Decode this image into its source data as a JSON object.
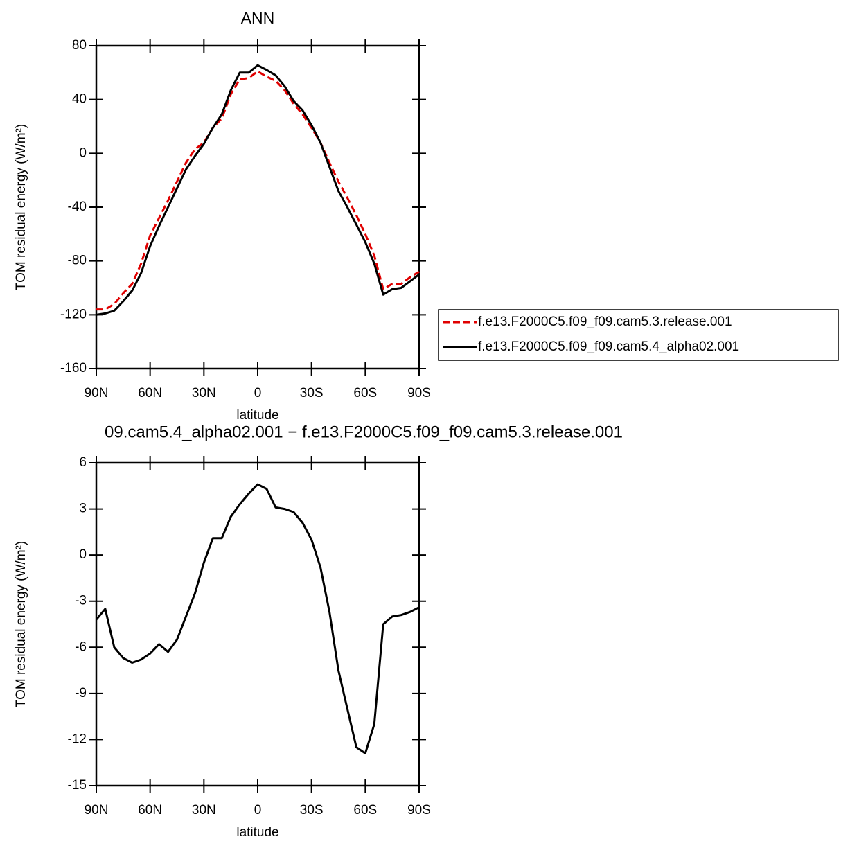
{
  "chart_data": [
    {
      "type": "line",
      "title": "ANN",
      "xlabel": "latitude",
      "ylabel": "TOM residual energy (W/m²)",
      "x": [
        90,
        85,
        80,
        75,
        70,
        65,
        60,
        55,
        50,
        45,
        40,
        35,
        30,
        25,
        20,
        15,
        10,
        5,
        0,
        -5,
        -10,
        -15,
        -20,
        -25,
        -30,
        -35,
        -40,
        -45,
        -50,
        -55,
        -60,
        -65,
        -70,
        -75,
        -80,
        -85,
        -90
      ],
      "xlim": [
        90,
        -90
      ],
      "xticks": [
        {
          "value": 90,
          "label": "90N"
        },
        {
          "value": 60,
          "label": "60N"
        },
        {
          "value": 30,
          "label": "30N"
        },
        0,
        {
          "value": -30,
          "label": "30S"
        },
        {
          "value": -60,
          "label": "60S"
        },
        {
          "value": -90,
          "label": "90S"
        }
      ],
      "ylim": [
        -160,
        80
      ],
      "yticks": [
        -160,
        -120,
        -80,
        -40,
        0,
        40,
        80
      ],
      "legend": "right",
      "series": [
        {
          "name": "f.e13.F2000C5.f09_f09.cam5.3.release.001",
          "color": "#e00000",
          "linestyle": "dashed",
          "values": [
            -116,
            -116,
            -112,
            -104,
            -97,
            -82,
            -61,
            -48,
            -35,
            -21,
            -7,
            3,
            8,
            19,
            26,
            44,
            55,
            56,
            61,
            57,
            54,
            47,
            37,
            29,
            19,
            8,
            -7,
            -21,
            -33,
            -46,
            -60,
            -76,
            -101,
            -97,
            -97,
            -92,
            -88
          ]
        },
        {
          "name": "f.e13.F2000C5.f09_f09.cam5.4_alpha02.001",
          "color": "#000000",
          "linestyle": "solid",
          "values": [
            -120,
            -119,
            -117,
            -110,
            -102,
            -89,
            -69,
            -54,
            -40,
            -26,
            -12,
            -2,
            7,
            19,
            29,
            47,
            60,
            60,
            65.5,
            62,
            58,
            50,
            39,
            32,
            21,
            8,
            -10,
            -28,
            -40,
            -53,
            -66,
            -82,
            -105,
            -101,
            -100,
            -95,
            -90
          ]
        }
      ]
    },
    {
      "type": "line",
      "title": "09.cam5.4_alpha02.001 − f.e13.F2000C5.f09_f09.cam5.3.release.001",
      "xlabel": "latitude",
      "ylabel": "TOM residual energy (W/m²)",
      "x": [
        90,
        85,
        80,
        75,
        70,
        65,
        60,
        55,
        50,
        45,
        40,
        35,
        30,
        25,
        20,
        15,
        10,
        5,
        0,
        -5,
        -10,
        -15,
        -20,
        -25,
        -30,
        -35,
        -40,
        -45,
        -50,
        -55,
        -60,
        -65,
        -70,
        -75,
        -80,
        -85,
        -90
      ],
      "xlim": [
        90,
        -90
      ],
      "xticks": [
        {
          "value": 90,
          "label": "90N"
        },
        {
          "value": 60,
          "label": "60N"
        },
        {
          "value": 30,
          "label": "30N"
        },
        0,
        {
          "value": -30,
          "label": "30S"
        },
        {
          "value": -60,
          "label": "60S"
        },
        {
          "value": -90,
          "label": "90S"
        }
      ],
      "ylim": [
        -15,
        6
      ],
      "yticks": [
        -15,
        -12,
        -9,
        -6,
        -3,
        0,
        3,
        6
      ],
      "series": [
        {
          "color": "#000000",
          "linestyle": "solid",
          "values": [
            -4.2,
            -3.5,
            -6,
            -6.7,
            -7,
            -6.8,
            -6.4,
            -5.8,
            -6.3,
            -5.5,
            -4,
            -2.5,
            -0.5,
            1.1,
            1.1,
            2.5,
            3.3,
            4.0,
            4.6,
            4.3,
            3.1,
            3.0,
            2.8,
            2.1,
            1.0,
            -0.8,
            -3.7,
            -7.5,
            -10,
            -12.5,
            -12.9,
            -11,
            -4.5,
            -4.0,
            -3.9,
            -3.7,
            -3.4
          ]
        }
      ]
    }
  ]
}
